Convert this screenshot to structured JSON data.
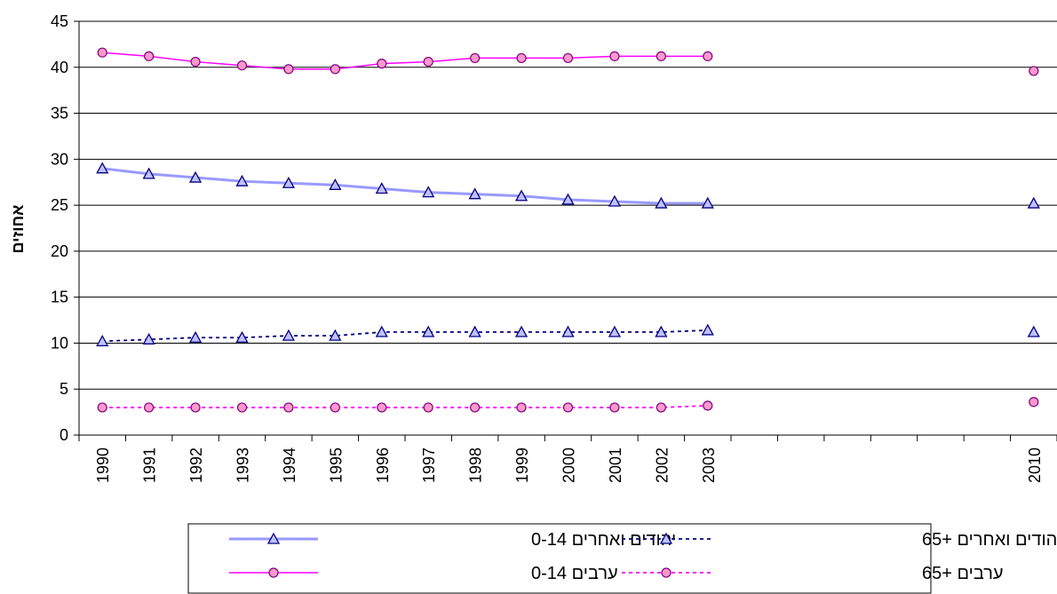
{
  "chart_data": {
    "type": "line",
    "title": "",
    "xlabel": "",
    "ylabel": "אחוזים",
    "ylim": [
      0,
      45
    ],
    "yticks": [
      0,
      5,
      10,
      15,
      20,
      25,
      30,
      35,
      40,
      45
    ],
    "grid": "horizontal",
    "legend_position": "bottom",
    "categories": [
      "1990",
      "1991",
      "1992",
      "1993",
      "1994",
      "1995",
      "1996",
      "1997",
      "1998",
      "1999",
      "2000",
      "2001",
      "2002",
      "2003",
      "",
      "",
      "",
      "",
      "",
      "",
      "2010"
    ],
    "series": [
      {
        "name": "יהודים ואחרים 0-14",
        "color": "#9999ff",
        "line_style": "solid-thick",
        "marker": "triangle",
        "values": [
          29.0,
          28.4,
          28.0,
          27.6,
          27.4,
          27.2,
          26.8,
          26.4,
          26.2,
          26.0,
          25.6,
          25.4,
          25.2,
          25.2,
          null,
          null,
          null,
          null,
          null,
          null,
          25.2
        ]
      },
      {
        "name": "יהודים ואחרים +65",
        "color": "#000080",
        "line_style": "dashed",
        "marker": "triangle",
        "values": [
          10.2,
          10.4,
          10.6,
          10.6,
          10.8,
          10.8,
          11.2,
          11.2,
          11.2,
          11.2,
          11.2,
          11.2,
          11.2,
          11.4,
          null,
          null,
          null,
          null,
          null,
          null,
          11.2
        ]
      },
      {
        "name": "ערבים 0-14",
        "color": "#ff00ff",
        "line_style": "solid",
        "marker": "circle",
        "values": [
          41.6,
          41.2,
          40.6,
          40.2,
          39.8,
          39.8,
          40.4,
          40.6,
          41.0,
          41.0,
          41.0,
          41.2,
          41.2,
          41.2,
          null,
          null,
          null,
          null,
          null,
          null,
          39.6
        ]
      },
      {
        "name": "ערבים +65",
        "color": "#ff00ff",
        "line_style": "dashed",
        "marker": "circle",
        "values": [
          3.0,
          3.0,
          3.0,
          3.0,
          3.0,
          3.0,
          3.0,
          3.0,
          3.0,
          3.0,
          3.0,
          3.0,
          3.0,
          3.2,
          null,
          null,
          null,
          null,
          null,
          null,
          3.6
        ]
      }
    ]
  },
  "legend": {
    "items": [
      {
        "label": "יהודים ואחרים 0-14",
        "series": 0
      },
      {
        "label": "יהודים ואחרים +65",
        "series": 1
      },
      {
        "label": "ערבים 0-14",
        "series": 2
      },
      {
        "label": "ערבים +65",
        "series": 3
      }
    ]
  }
}
